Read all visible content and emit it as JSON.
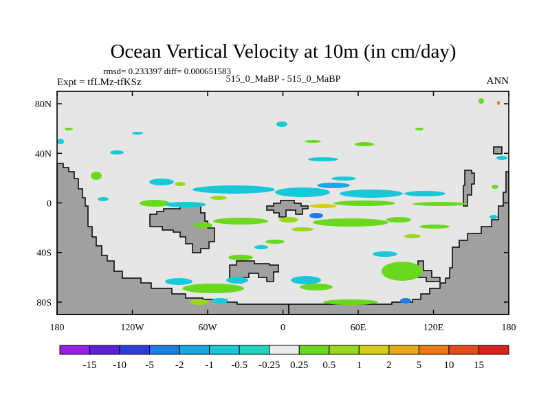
{
  "chart_data": {
    "type": "heatmap",
    "title": "Ocean Vertical Velocity at 10m (in cm/day)",
    "stats_line": "rmsd= 0.233397 diff= 0.000651583",
    "left_label": "Expt = tfLMz-tfKSz",
    "center_label": "515_0_MaBP - 515_0_MaBP",
    "right_label": "ANN",
    "x_ticks": [
      "180",
      "120W",
      "60W",
      "0",
      "60E",
      "120E",
      "180"
    ],
    "x_tick_values": [
      -180,
      -120,
      -60,
      0,
      60,
      120,
      180
    ],
    "y_ticks": [
      "80N",
      "40N",
      "0",
      "40S",
      "80S"
    ],
    "y_tick_values": [
      80,
      40,
      0,
      -40,
      -80
    ],
    "xlim": [
      -180,
      180
    ],
    "ylim": [
      -90,
      90
    ],
    "colorbar": {
      "labels": [
        "-15",
        "-10",
        "-5",
        "-2",
        "-1",
        "-0.5",
        "-0.25",
        "0.25",
        "0.5",
        "1",
        "2",
        "5",
        "10",
        "15"
      ],
      "colors": [
        "#9a1fe6",
        "#5a1fd6",
        "#2d3fd8",
        "#1e7ee0",
        "#19a8e0",
        "#19c8d8",
        "#1ed6c0",
        "#ececec",
        "#6ad81e",
        "#9ad81e",
        "#d6cc1a",
        "#e8a81a",
        "#e8781a",
        "#e44a1a",
        "#d8221a"
      ]
    },
    "land_color": "#a0a0a0",
    "neutral_color": "#e6e6e6"
  }
}
